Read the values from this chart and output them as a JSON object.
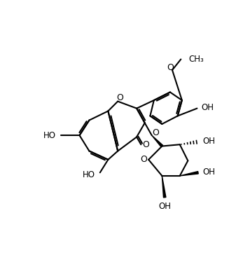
{
  "bg_color": "#ffffff",
  "line_color": "#000000",
  "line_width": 1.5,
  "figsize": [
    3.47,
    3.71
  ],
  "dpi": 100
}
